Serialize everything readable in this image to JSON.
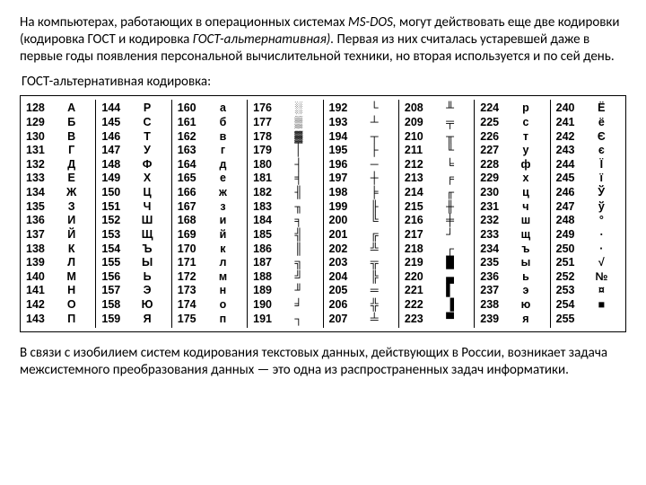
{
  "text": {
    "para1_a": "На компьютерах, работающих в операционных системах ",
    "para1_b": "MS-DOS,",
    "para1_c": " могут действовать еще две кодировки (кодировка ГОСТ и кодировка ",
    "para1_d": "ГОСТ-альтернативная).",
    "para1_e": " Первая из них считалась устаревшей даже в первые годы появления персональной вычислительной техники, но вторая используется и по сей день.",
    "subtitle": "ГОСТ-альтернативная кодировка:",
    "para2": "В связи с изобилием систем кодирования текстовых данных, действующих в России, возникает задача межсистемного преобразования данных — это одна из распространенных задач информатики."
  },
  "table": {
    "font_family": "Arial",
    "font_size_pt": 9,
    "font_weight": "bold",
    "border_color": "#000000",
    "columns": [
      [
        {
          "c": "128",
          "g": "А"
        },
        {
          "c": "129",
          "g": "Б"
        },
        {
          "c": "130",
          "g": "В"
        },
        {
          "c": "131",
          "g": "Г"
        },
        {
          "c": "132",
          "g": "Д"
        },
        {
          "c": "133",
          "g": "Е"
        },
        {
          "c": "134",
          "g": "Ж"
        },
        {
          "c": "135",
          "g": "З"
        },
        {
          "c": "136",
          "g": "И"
        },
        {
          "c": "137",
          "g": "Й"
        },
        {
          "c": "138",
          "g": "К"
        },
        {
          "c": "139",
          "g": "Л"
        },
        {
          "c": "140",
          "g": "М"
        },
        {
          "c": "141",
          "g": "Н"
        },
        {
          "c": "142",
          "g": "О"
        },
        {
          "c": "143",
          "g": "П"
        }
      ],
      [
        {
          "c": "144",
          "g": "Р"
        },
        {
          "c": "145",
          "g": "С"
        },
        {
          "c": "146",
          "g": "Т"
        },
        {
          "c": "147",
          "g": "У"
        },
        {
          "c": "148",
          "g": "Ф"
        },
        {
          "c": "149",
          "g": "Х"
        },
        {
          "c": "150",
          "g": "Ц"
        },
        {
          "c": "151",
          "g": "Ч"
        },
        {
          "c": "152",
          "g": "Ш"
        },
        {
          "c": "153",
          "g": "Щ"
        },
        {
          "c": "154",
          "g": "Ъ"
        },
        {
          "c": "155",
          "g": "Ы"
        },
        {
          "c": "156",
          "g": "Ь"
        },
        {
          "c": "157",
          "g": "Э"
        },
        {
          "c": "158",
          "g": "Ю"
        },
        {
          "c": "159",
          "g": "Я"
        }
      ],
      [
        {
          "c": "160",
          "g": "а"
        },
        {
          "c": "161",
          "g": "б"
        },
        {
          "c": "162",
          "g": "в"
        },
        {
          "c": "163",
          "g": "г"
        },
        {
          "c": "164",
          "g": "д"
        },
        {
          "c": "165",
          "g": "е"
        },
        {
          "c": "166",
          "g": "ж"
        },
        {
          "c": "167",
          "g": "з"
        },
        {
          "c": "168",
          "g": "и"
        },
        {
          "c": "169",
          "g": "й"
        },
        {
          "c": "170",
          "g": "к"
        },
        {
          "c": "171",
          "g": "л"
        },
        {
          "c": "172",
          "g": "м"
        },
        {
          "c": "173",
          "g": "н"
        },
        {
          "c": "174",
          "g": "о"
        },
        {
          "c": "175",
          "g": "п"
        }
      ],
      [
        {
          "c": "176",
          "g": "░"
        },
        {
          "c": "177",
          "g": "▒"
        },
        {
          "c": "178",
          "g": "▓"
        },
        {
          "c": "179",
          "g": "│"
        },
        {
          "c": "180",
          "g": "┤"
        },
        {
          "c": "181",
          "g": "╡"
        },
        {
          "c": "182",
          "g": "╢"
        },
        {
          "c": "183",
          "g": "╖"
        },
        {
          "c": "184",
          "g": "╕"
        },
        {
          "c": "185",
          "g": "╣"
        },
        {
          "c": "186",
          "g": "║"
        },
        {
          "c": "187",
          "g": "╗"
        },
        {
          "c": "188",
          "g": "╝"
        },
        {
          "c": "189",
          "g": "╜"
        },
        {
          "c": "190",
          "g": "╛"
        },
        {
          "c": "191",
          "g": "┐"
        }
      ],
      [
        {
          "c": "192",
          "g": "└"
        },
        {
          "c": "193",
          "g": "┴"
        },
        {
          "c": "194",
          "g": "┬"
        },
        {
          "c": "195",
          "g": "├"
        },
        {
          "c": "196",
          "g": "─"
        },
        {
          "c": "197",
          "g": "┼"
        },
        {
          "c": "198",
          "g": "╞"
        },
        {
          "c": "199",
          "g": "╟"
        },
        {
          "c": "200",
          "g": "╚"
        },
        {
          "c": "201",
          "g": "╔"
        },
        {
          "c": "202",
          "g": "╩"
        },
        {
          "c": "203",
          "g": "╦"
        },
        {
          "c": "204",
          "g": "╠"
        },
        {
          "c": "205",
          "g": "═"
        },
        {
          "c": "206",
          "g": "╬"
        },
        {
          "c": "207",
          "g": "╧"
        }
      ],
      [
        {
          "c": "208",
          "g": "╨"
        },
        {
          "c": "209",
          "g": "╤"
        },
        {
          "c": "210",
          "g": "╥"
        },
        {
          "c": "211",
          "g": "╙"
        },
        {
          "c": "212",
          "g": "╘"
        },
        {
          "c": "213",
          "g": "╒"
        },
        {
          "c": "214",
          "g": "╓"
        },
        {
          "c": "215",
          "g": "╫"
        },
        {
          "c": "216",
          "g": "╪"
        },
        {
          "c": "217",
          "g": "┘"
        },
        {
          "c": "218",
          "g": "┌"
        },
        {
          "c": "219",
          "g": "█"
        },
        {
          "c": "220",
          "g": "▄"
        },
        {
          "c": "221",
          "g": "▌"
        },
        {
          "c": "222",
          "g": "▐"
        },
        {
          "c": "223",
          "g": "▀"
        }
      ],
      [
        {
          "c": "224",
          "g": "р"
        },
        {
          "c": "225",
          "g": "с"
        },
        {
          "c": "226",
          "g": "т"
        },
        {
          "c": "227",
          "g": "у"
        },
        {
          "c": "228",
          "g": "ф"
        },
        {
          "c": "229",
          "g": "х"
        },
        {
          "c": "230",
          "g": "ц"
        },
        {
          "c": "231",
          "g": "ч"
        },
        {
          "c": "232",
          "g": "ш"
        },
        {
          "c": "233",
          "g": "щ"
        },
        {
          "c": "234",
          "g": "ъ"
        },
        {
          "c": "235",
          "g": "ы"
        },
        {
          "c": "236",
          "g": "ь"
        },
        {
          "c": "237",
          "g": "э"
        },
        {
          "c": "238",
          "g": "ю"
        },
        {
          "c": "239",
          "g": "я"
        }
      ],
      [
        {
          "c": "240",
          "g": "Ё"
        },
        {
          "c": "241",
          "g": "ё"
        },
        {
          "c": "242",
          "g": "Є"
        },
        {
          "c": "243",
          "g": "є"
        },
        {
          "c": "244",
          "g": "Ї"
        },
        {
          "c": "245",
          "g": "ї"
        },
        {
          "c": "246",
          "g": "Ў"
        },
        {
          "c": "247",
          "g": "ў"
        },
        {
          "c": "248",
          "g": "°"
        },
        {
          "c": "249",
          "g": "∙"
        },
        {
          "c": "250",
          "g": "·"
        },
        {
          "c": "251",
          "g": "√"
        },
        {
          "c": "252",
          "g": "№"
        },
        {
          "c": "253",
          "g": "¤"
        },
        {
          "c": "254",
          "g": "■"
        },
        {
          "c": "255",
          "g": " "
        }
      ]
    ]
  }
}
